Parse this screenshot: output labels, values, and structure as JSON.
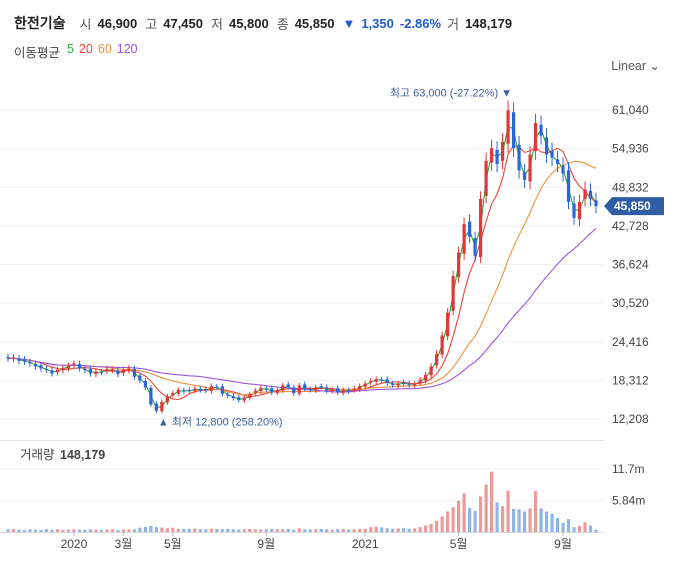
{
  "header": {
    "stock_name": "한전기술",
    "open_label": "시",
    "open": "46,900",
    "high_label": "고",
    "high": "47,450",
    "low_label": "저",
    "low": "45,800",
    "close_label": "종",
    "close": "45,850",
    "change_arrow": "▼",
    "change": "1,350",
    "change_pct": "-2.86%",
    "volume_label": "거",
    "volume": "148,179"
  },
  "moving_avg": {
    "label": "이동평균",
    "periods": [
      {
        "value": "5",
        "color": "#2eaa3e"
      },
      {
        "value": "20",
        "color": "#e8473a"
      },
      {
        "value": "60",
        "color": "#f0913a"
      },
      {
        "value": "120",
        "color": "#9b56e0"
      }
    ]
  },
  "scale_toggle": "Linear",
  "volume_panel": {
    "label": "거래량",
    "value": "148,179"
  },
  "chart_data": {
    "type": "candlestick",
    "price_axis": {
      "ticks": [
        61040,
        54936,
        48832,
        42728,
        36624,
        30520,
        24416,
        18312,
        12208
      ],
      "tick_labels": [
        "61,040",
        "54,936",
        "48,832",
        "42,728",
        "36,624",
        "30,520",
        "24,416",
        "18,312",
        "12,208"
      ]
    },
    "volume_axis": {
      "ticks": [
        11.7,
        5.84
      ],
      "tick_labels": [
        "11.7m",
        "5.84m"
      ],
      "unit": "m"
    },
    "x_labels": [
      "2020",
      "3월",
      "5월",
      "9월",
      "2021",
      "5월",
      "9월"
    ],
    "current_price": {
      "value": 45850,
      "label": "45,850",
      "color": "#2f5ea7"
    },
    "max_annotation": {
      "text": "최고",
      "value": "63,000",
      "pct": "(-27.22%)",
      "arrow": "▼"
    },
    "min_annotation": {
      "text": "최저",
      "value": "12,800",
      "pct": "(258.20%)",
      "arrow": "▲"
    },
    "up_color": "#e03838",
    "down_color": "#2a66d8",
    "closes": [
      21800,
      21900,
      21400,
      21300,
      21000,
      20500,
      20200,
      20000,
      19400,
      20000,
      20300,
      20600,
      21000,
      20200,
      19900,
      19400,
      19700,
      19600,
      20100,
      20000,
      19300,
      20000,
      20200,
      18900,
      18300,
      17200,
      14500,
      13500,
      14900,
      15800,
      16300,
      16800,
      16600,
      16700,
      17000,
      16800,
      16700,
      17400,
      17200,
      16200,
      15900,
      15500,
      15200,
      15600,
      16100,
      16700,
      17100,
      16900,
      16400,
      16800,
      17500,
      17300,
      16300,
      17500,
      17000,
      16800,
      17200,
      17300,
      16700,
      16900,
      16400,
      16800,
      16600,
      17000,
      17400,
      17800,
      18200,
      18500,
      18300,
      17900,
      17600,
      17800,
      17900,
      17600,
      17800,
      18400,
      19200,
      20500,
      22500,
      25400,
      29000,
      34800,
      38500,
      43000,
      41000,
      38000,
      47000,
      53000,
      55000,
      52500,
      56000,
      61000,
      55000,
      51500,
      50000,
      54000,
      59000,
      57000,
      54000,
      53500,
      52500,
      51000,
      46500,
      44000,
      46500,
      48500,
      47000,
      45850
    ],
    "volumes_m": [
      0.5,
      0.55,
      0.45,
      0.4,
      0.5,
      0.45,
      0.4,
      0.5,
      0.45,
      0.5,
      0.4,
      0.45,
      0.5,
      0.45,
      0.4,
      0.5,
      0.45,
      0.4,
      0.45,
      0.5,
      0.4,
      0.45,
      0.5,
      0.5,
      0.8,
      0.95,
      1.15,
      0.9,
      0.85,
      0.7,
      0.8,
      0.6,
      0.55,
      0.6,
      0.65,
      0.55,
      0.5,
      0.6,
      0.55,
      0.5,
      0.55,
      0.5,
      0.45,
      0.5,
      0.55,
      0.5,
      0.45,
      0.5,
      0.6,
      0.55,
      0.5,
      0.55,
      0.45,
      0.7,
      0.5,
      0.45,
      0.5,
      0.55,
      0.5,
      0.45,
      0.5,
      0.55,
      0.45,
      0.5,
      0.55,
      0.6,
      0.9,
      1.0,
      0.85,
      0.7,
      0.6,
      0.65,
      0.7,
      0.6,
      0.65,
      0.9,
      1.2,
      1.5,
      2.1,
      2.9,
      3.8,
      4.6,
      5.8,
      7.2,
      4.5,
      3.9,
      6.6,
      8.8,
      11.2,
      5.5,
      4.8,
      7.7,
      4.3,
      4.2,
      3.8,
      4.4,
      7.6,
      4.4,
      3.8,
      3.4,
      2.6,
      1.7,
      2.4,
      0.9,
      1.1,
      1.8,
      1.2,
      0.45
    ]
  }
}
